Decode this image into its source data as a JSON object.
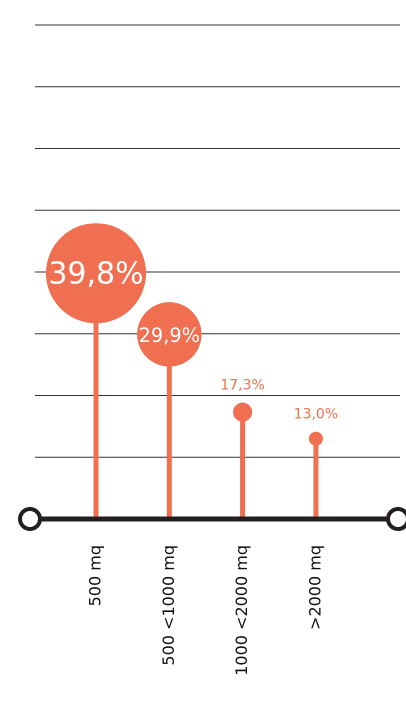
{
  "chart_data": {
    "type": "lollipop",
    "categories": [
      "500 mq",
      "500 <1000 mq",
      "1000 <2000 mq",
      ">2000 mq"
    ],
    "values": [
      39.8,
      29.9,
      17.3,
      13.0
    ],
    "value_labels": [
      "39,8%",
      "29,9%",
      "17,3%",
      "13,0%"
    ],
    "color": "#ef6f50",
    "ylim": [
      0,
      80
    ],
    "yticks": [
      10,
      20,
      30,
      40,
      50,
      60,
      70,
      80
    ],
    "grid": true
  }
}
